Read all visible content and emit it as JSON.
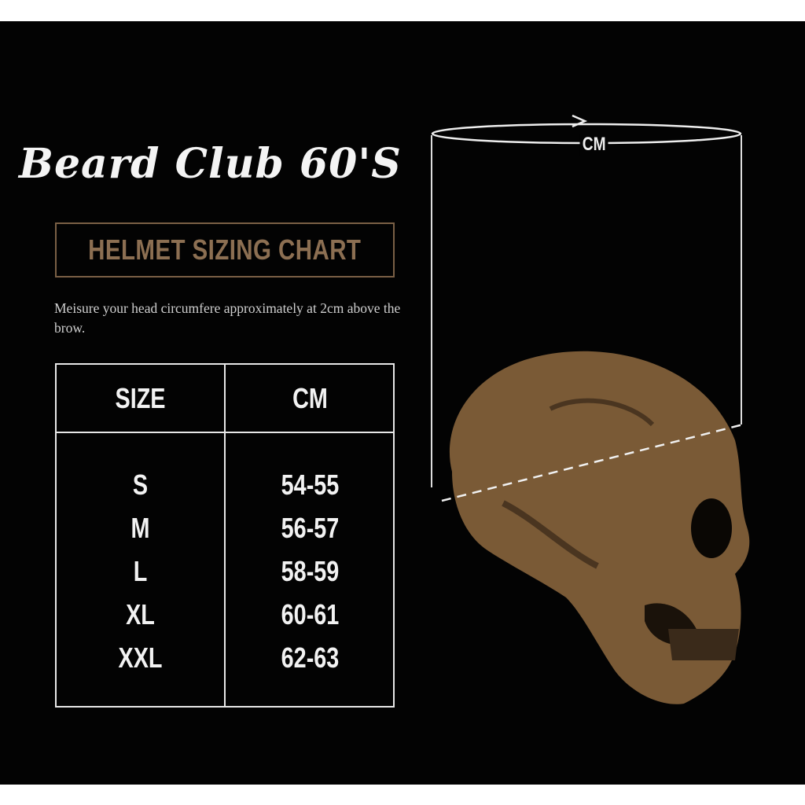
{
  "brand": "Beard Club 60'S",
  "title": "HELMET SIZING CHART",
  "instruction": "Meisure your head circumfere approximately at 2cm above the brow.",
  "measure_label": "CM",
  "table": {
    "headers": [
      "SIZE",
      "CM"
    ],
    "rows": [
      {
        "size": "S",
        "cm": "54-55"
      },
      {
        "size": "M",
        "cm": "56-57"
      },
      {
        "size": "L",
        "cm": "58-59"
      },
      {
        "size": "XL",
        "cm": "60-61"
      },
      {
        "size": "XXL",
        "cm": "62-63"
      }
    ]
  },
  "colors": {
    "background": "#030303",
    "accent": "#8c6f52",
    "skull": "#7a5a36"
  },
  "illustration": "skull-icon"
}
